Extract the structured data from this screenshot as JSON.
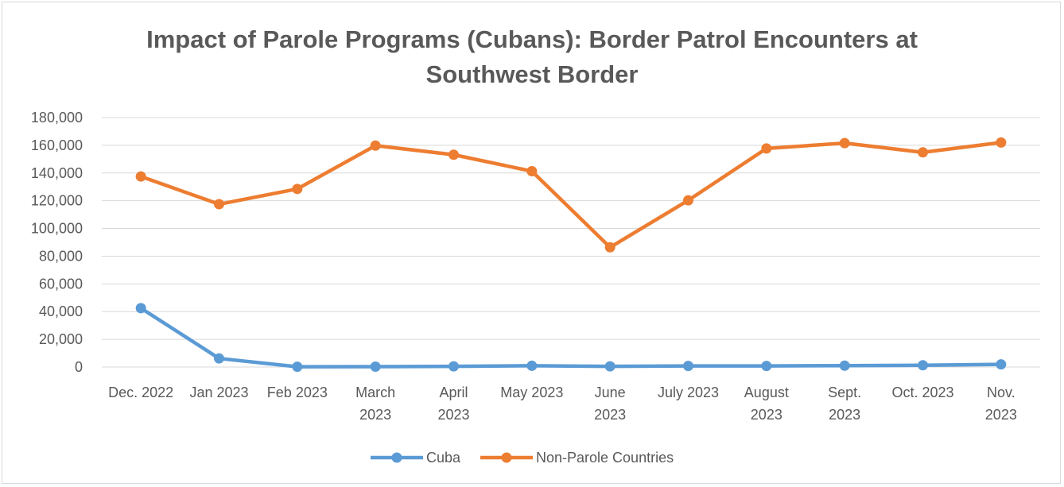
{
  "chart_data": {
    "type": "line",
    "title_line1": "Impact of Parole Programs (Cubans): Border Patrol Encounters at",
    "title_line2": "Southwest Border",
    "categories": [
      [
        "Dec. 2022"
      ],
      [
        "Jan 2023"
      ],
      [
        "Feb 2023"
      ],
      [
        "March",
        "2023"
      ],
      [
        "April",
        "2023"
      ],
      [
        "May 2023"
      ],
      [
        "June",
        "2023"
      ],
      [
        "July 2023"
      ],
      [
        "August",
        "2023"
      ],
      [
        "Sept.",
        "2023"
      ],
      [
        "Oct. 2023"
      ],
      [
        "Nov.",
        "2023"
      ]
    ],
    "y_ticks": [
      "0",
      "20,000",
      "40,000",
      "60,000",
      "80,000",
      "100,000",
      "120,000",
      "140,000",
      "160,000",
      "180,000"
    ],
    "ylim": [
      0,
      180000
    ],
    "grid": true,
    "legend_position": "bottom",
    "series": [
      {
        "name": "Cuba",
        "color": "#5b9bd5",
        "values": [
          42500,
          6200,
          200,
          300,
          500,
          900,
          500,
          800,
          800,
          1000,
          1300,
          1900
        ]
      },
      {
        "name": "Non-Parole Countries",
        "color": "#ed7d31",
        "values": [
          137500,
          117500,
          128500,
          159800,
          153200,
          141300,
          86400,
          120300,
          157700,
          161600,
          154900,
          162000
        ]
      }
    ]
  }
}
